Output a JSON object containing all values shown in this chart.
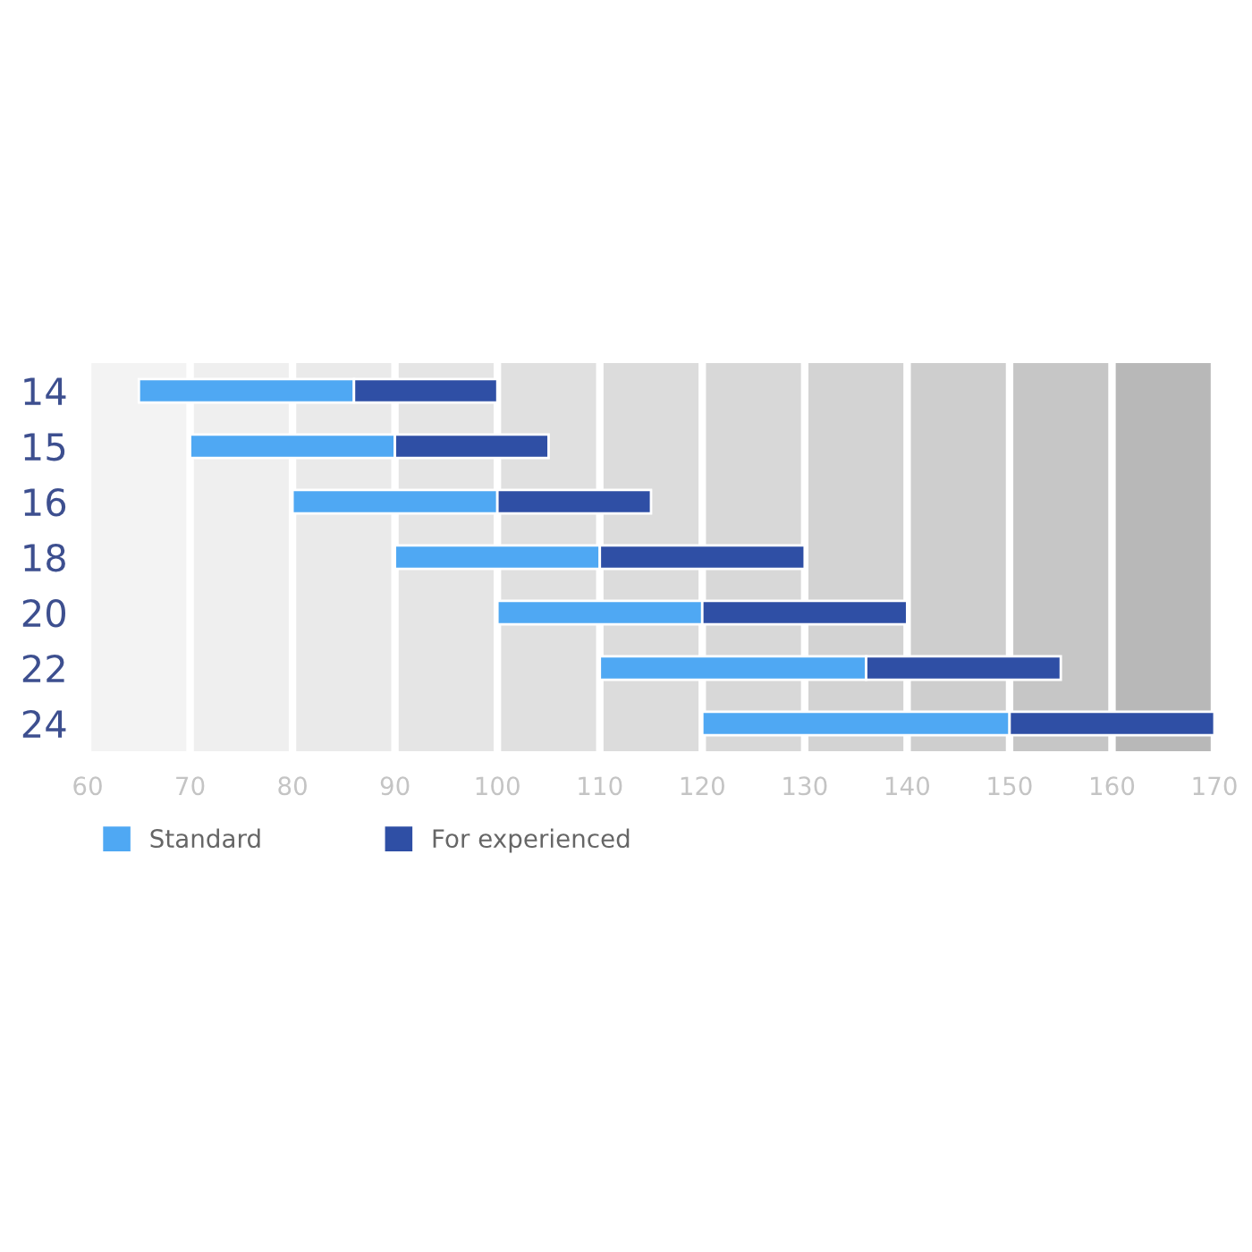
{
  "chart_data": {
    "type": "bar",
    "orientation": "horizontal",
    "categories": [
      "14",
      "15",
      "16",
      "18",
      "20",
      "22",
      "24"
    ],
    "series": [
      {
        "name": "Standard",
        "color": "#4fa8f3",
        "base": [
          65,
          70,
          80,
          90,
          100,
          110,
          120
        ],
        "values": [
          21,
          20,
          20,
          20,
          20,
          26,
          30
        ]
      },
      {
        "name": "For experienced",
        "color": "#2f4fa5",
        "base": [
          86,
          90,
          100,
          110,
          120,
          136,
          150
        ],
        "values": [
          14,
          15,
          15,
          20,
          20,
          19,
          20
        ]
      }
    ],
    "xlim": [
      60,
      170
    ],
    "xticks": [
      60,
      70,
      80,
      90,
      100,
      110,
      120,
      130,
      140,
      150,
      160,
      170
    ],
    "bands": [
      {
        "axis": "x",
        "from": 60,
        "to": 70,
        "color": "#f3f3f3"
      },
      {
        "axis": "x",
        "from": 70,
        "to": 80,
        "color": "#efefef"
      },
      {
        "axis": "x",
        "from": 80,
        "to": 90,
        "color": "#eaeaea"
      },
      {
        "axis": "x",
        "from": 90,
        "to": 100,
        "color": "#e5e5e5"
      },
      {
        "axis": "x",
        "from": 100,
        "to": 110,
        "color": "#e0e0e0"
      },
      {
        "axis": "x",
        "from": 110,
        "to": 120,
        "color": "#dcdcdc"
      },
      {
        "axis": "x",
        "from": 120,
        "to": 130,
        "color": "#d8d8d8"
      },
      {
        "axis": "x",
        "from": 130,
        "to": 140,
        "color": "#d3d3d3"
      },
      {
        "axis": "x",
        "from": 140,
        "to": 150,
        "color": "#cecece"
      },
      {
        "axis": "x",
        "from": 150,
        "to": 160,
        "color": "#c6c6c6"
      },
      {
        "axis": "x",
        "from": 160,
        "to": 170,
        "color": "#b8b8b8"
      }
    ],
    "grid": "x",
    "legend": "bottom left"
  }
}
